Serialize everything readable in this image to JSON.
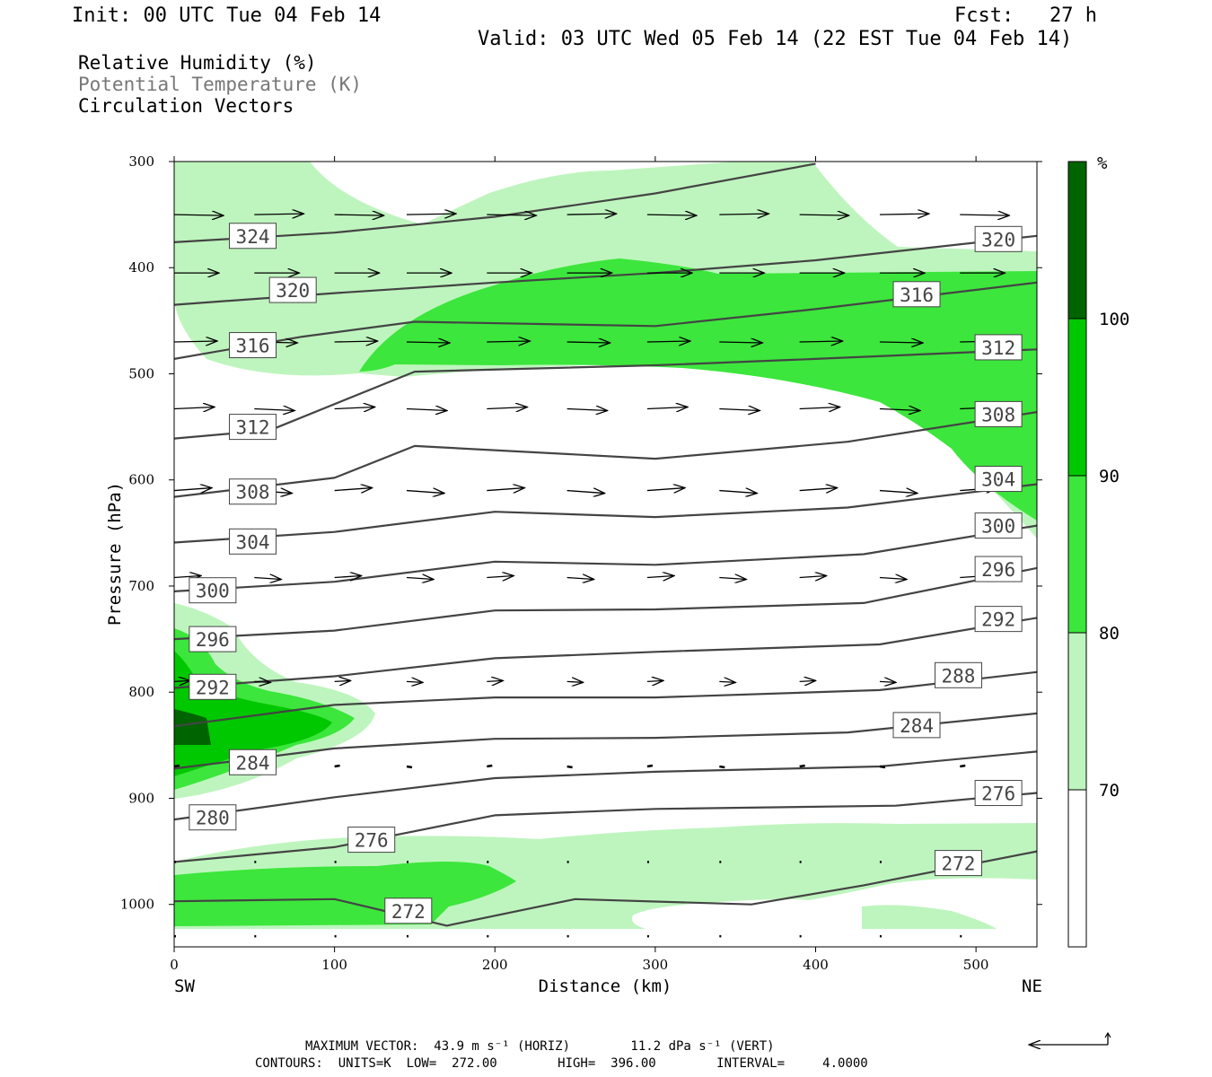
{
  "header": {
    "init": "Init: 00 UTC Tue 04 Feb 14",
    "fcst": "Fcst:   27 h",
    "valid": "Valid: 03 UTC Wed 05 Feb 14 (22 EST Tue 04 Feb 14)"
  },
  "legend": {
    "rh": "Relative Humidity (%)",
    "theta": "Potential Temperature (K)",
    "vectors": "Circulation Vectors"
  },
  "footer": {
    "max_vector": "MAXIMUM VECTOR:  43.9 m s⁻¹ (HORIZ)        11.2 dPa s⁻¹ (VERT)",
    "contours": "CONTOURS:  UNITS=K  LOW=  272.00        HIGH=  396.00        INTERVAL=     4.0000"
  },
  "colorbar": {
    "unit": "%",
    "labels": [
      "100",
      "90",
      "80",
      "70"
    ],
    "colors": [
      "#006400",
      "#00c800",
      "#3ce63c",
      "#bef5be",
      "#ffffff"
    ]
  },
  "chart_data": {
    "type": "cross-section",
    "xlabel": "Distance (km)",
    "ylabel": "Pressure (hPa)",
    "x_end_labels": [
      "SW",
      "NE"
    ],
    "xlim": [
      0,
      538
    ],
    "ylim": [
      1040,
      300
    ],
    "xticks": [
      "0",
      "100",
      "200",
      "300",
      "400",
      "500"
    ],
    "yticks": [
      "300",
      "400",
      "500",
      "600",
      "700",
      "800",
      "900",
      "1000"
    ],
    "rh_levels": [
      70,
      80,
      90,
      100
    ],
    "theta_contours": [
      {
        "value": 324,
        "label_at": [
          49,
          370
        ],
        "pts": [
          [
            0,
            376
          ],
          [
            100,
            367
          ],
          [
            200,
            352
          ],
          [
            300,
            330
          ],
          [
            400,
            302
          ]
        ]
      },
      {
        "value": 320,
        "label_at": [
          74,
          421
        ],
        "pts": [
          [
            0,
            435
          ],
          [
            100,
            424
          ],
          [
            200,
            414
          ],
          [
            300,
            405
          ],
          [
            400,
            393
          ],
          [
            538,
            370
          ]
        ]
      },
      {
        "value": 320,
        "label_at": [
          514,
          373
        ],
        "pts": []
      },
      {
        "value": 316,
        "label_at": [
          49,
          473
        ],
        "pts": [
          [
            0,
            486
          ],
          [
            80,
            465
          ],
          [
            150,
            451
          ],
          [
            300,
            455
          ],
          [
            400,
            439
          ],
          [
            538,
            414
          ]
        ]
      },
      {
        "value": 316,
        "label_at": [
          463,
          425
        ],
        "pts": []
      },
      {
        "value": 312,
        "label_at": [
          49,
          550
        ],
        "pts": [
          [
            0,
            561
          ],
          [
            60,
            553
          ],
          [
            150,
            498
          ],
          [
            300,
            492
          ],
          [
            400,
            486
          ],
          [
            538,
            477
          ]
        ]
      },
      {
        "value": 312,
        "label_at": [
          514,
          475
        ],
        "pts": []
      },
      {
        "value": 308,
        "label_at": [
          49,
          611
        ],
        "pts": [
          [
            0,
            616
          ],
          [
            100,
            598
          ],
          [
            150,
            568
          ],
          [
            300,
            580
          ],
          [
            420,
            564
          ],
          [
            538,
            536
          ]
        ]
      },
      {
        "value": 308,
        "label_at": [
          514,
          538
        ],
        "pts": []
      },
      {
        "value": 304,
        "label_at": [
          49,
          658
        ],
        "pts": [
          [
            0,
            659
          ],
          [
            100,
            649
          ],
          [
            200,
            630
          ],
          [
            300,
            635
          ],
          [
            420,
            626
          ],
          [
            538,
            604
          ]
        ]
      },
      {
        "value": 304,
        "label_at": [
          514,
          599
        ],
        "pts": []
      },
      {
        "value": 300,
        "label_at": [
          24,
          704
        ],
        "pts": [
          [
            0,
            705
          ],
          [
            100,
            696
          ],
          [
            200,
            677
          ],
          [
            300,
            680
          ],
          [
            430,
            670
          ],
          [
            538,
            643
          ]
        ]
      },
      {
        "value": 300,
        "label_at": [
          514,
          643
        ],
        "pts": []
      },
      {
        "value": 296,
        "label_at": [
          24,
          750
        ],
        "pts": [
          [
            0,
            750
          ],
          [
            100,
            742
          ],
          [
            200,
            723
          ],
          [
            300,
            722
          ],
          [
            430,
            716
          ],
          [
            538,
            683
          ]
        ]
      },
      {
        "value": 296,
        "label_at": [
          514,
          684
        ],
        "pts": []
      },
      {
        "value": 292,
        "label_at": [
          24,
          795
        ],
        "pts": [
          [
            0,
            796
          ],
          [
            100,
            785
          ],
          [
            200,
            768
          ],
          [
            300,
            762
          ],
          [
            440,
            755
          ],
          [
            538,
            730
          ]
        ]
      },
      {
        "value": 292,
        "label_at": [
          514,
          731
        ],
        "pts": []
      },
      {
        "value": 288,
        "label_at": [
          489,
          784
        ],
        "pts": [
          [
            0,
            832
          ],
          [
            100,
            812
          ],
          [
            200,
            805
          ],
          [
            300,
            805
          ],
          [
            440,
            798
          ],
          [
            538,
            781
          ]
        ]
      },
      {
        "value": 284,
        "label_at": [
          49,
          866
        ],
        "pts": [
          [
            0,
            872
          ],
          [
            100,
            853
          ],
          [
            200,
            844
          ],
          [
            300,
            843
          ],
          [
            420,
            838
          ],
          [
            538,
            820
          ]
        ]
      },
      {
        "value": 284,
        "label_at": [
          463,
          831
        ],
        "pts": []
      },
      {
        "value": 280,
        "label_at": [
          24,
          918
        ],
        "pts": [
          [
            0,
            920
          ],
          [
            100,
            899
          ],
          [
            200,
            881
          ],
          [
            300,
            875
          ],
          [
            440,
            870
          ],
          [
            538,
            856
          ]
        ]
      },
      {
        "value": 276,
        "label_at": [
          123,
          939
        ],
        "pts": [
          [
            0,
            960
          ],
          [
            100,
            946
          ],
          [
            200,
            916
          ],
          [
            300,
            910
          ],
          [
            450,
            907
          ],
          [
            538,
            895
          ]
        ]
      },
      {
        "value": 276,
        "label_at": [
          514,
          895
        ],
        "pts": []
      },
      {
        "value": 272,
        "label_at": [
          146,
          1006
        ],
        "pts": [
          [
            0,
            997
          ],
          [
            100,
            995
          ],
          [
            170,
            1020
          ],
          [
            250,
            995
          ],
          [
            360,
            1000
          ],
          [
            430,
            982
          ],
          [
            538,
            950
          ]
        ]
      },
      {
        "value": 272,
        "label_at": [
          489,
          961
        ],
        "pts": []
      }
    ],
    "circulation_vectors_hPa": [
      350,
      405,
      470,
      533,
      610,
      692,
      790,
      870,
      960,
      1030
    ],
    "max_vector": {
      "horiz": "43.9 m s-1",
      "vert": "11.2 dPa s-1"
    },
    "contour_info": {
      "units": "K",
      "low": 272.0,
      "high": 396.0,
      "interval": 4.0
    }
  }
}
